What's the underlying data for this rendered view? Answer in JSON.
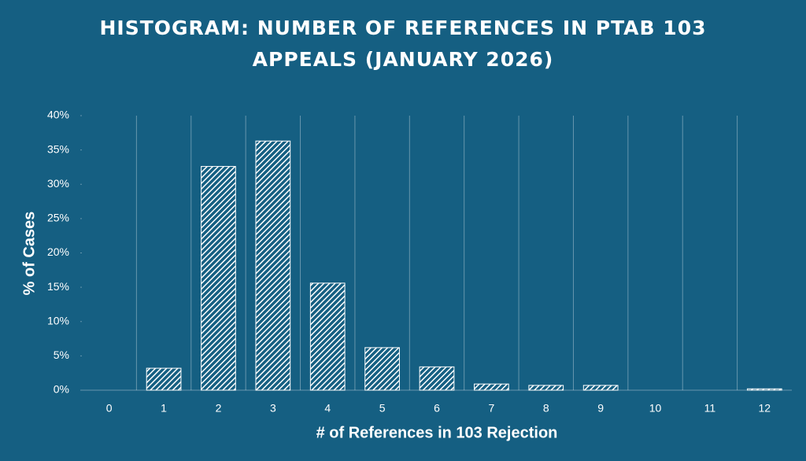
{
  "chart_data": {
    "type": "bar",
    "title": "HISTOGRAM: NUMBER OF REFERENCES IN PTAB 103 APPEALS (JANUARY 2026)",
    "x_label": "# of References in 103 Rejection",
    "y_label": "% of Cases",
    "categories": [
      "0",
      "1",
      "2",
      "3",
      "4",
      "5",
      "6",
      "7",
      "8",
      "9",
      "10",
      "11",
      "12"
    ],
    "values": [
      0,
      3.2,
      32.6,
      36.3,
      15.6,
      6.2,
      3.4,
      0.9,
      0.7,
      0.7,
      0,
      0,
      0.2
    ],
    "color": "#ffffff",
    "ylim": [
      0,
      40
    ],
    "yticks": [
      {
        "value": 0,
        "label": "0%"
      },
      {
        "value": 5,
        "label": "5%"
      },
      {
        "value": 10,
        "label": "10%"
      },
      {
        "value": 15,
        "label": "15%"
      },
      {
        "value": 20,
        "label": "20%"
      },
      {
        "value": 25,
        "label": "25%"
      },
      {
        "value": 30,
        "label": "30%"
      },
      {
        "value": 35,
        "label": "35%"
      },
      {
        "value": 40,
        "label": "40%"
      }
    ]
  }
}
